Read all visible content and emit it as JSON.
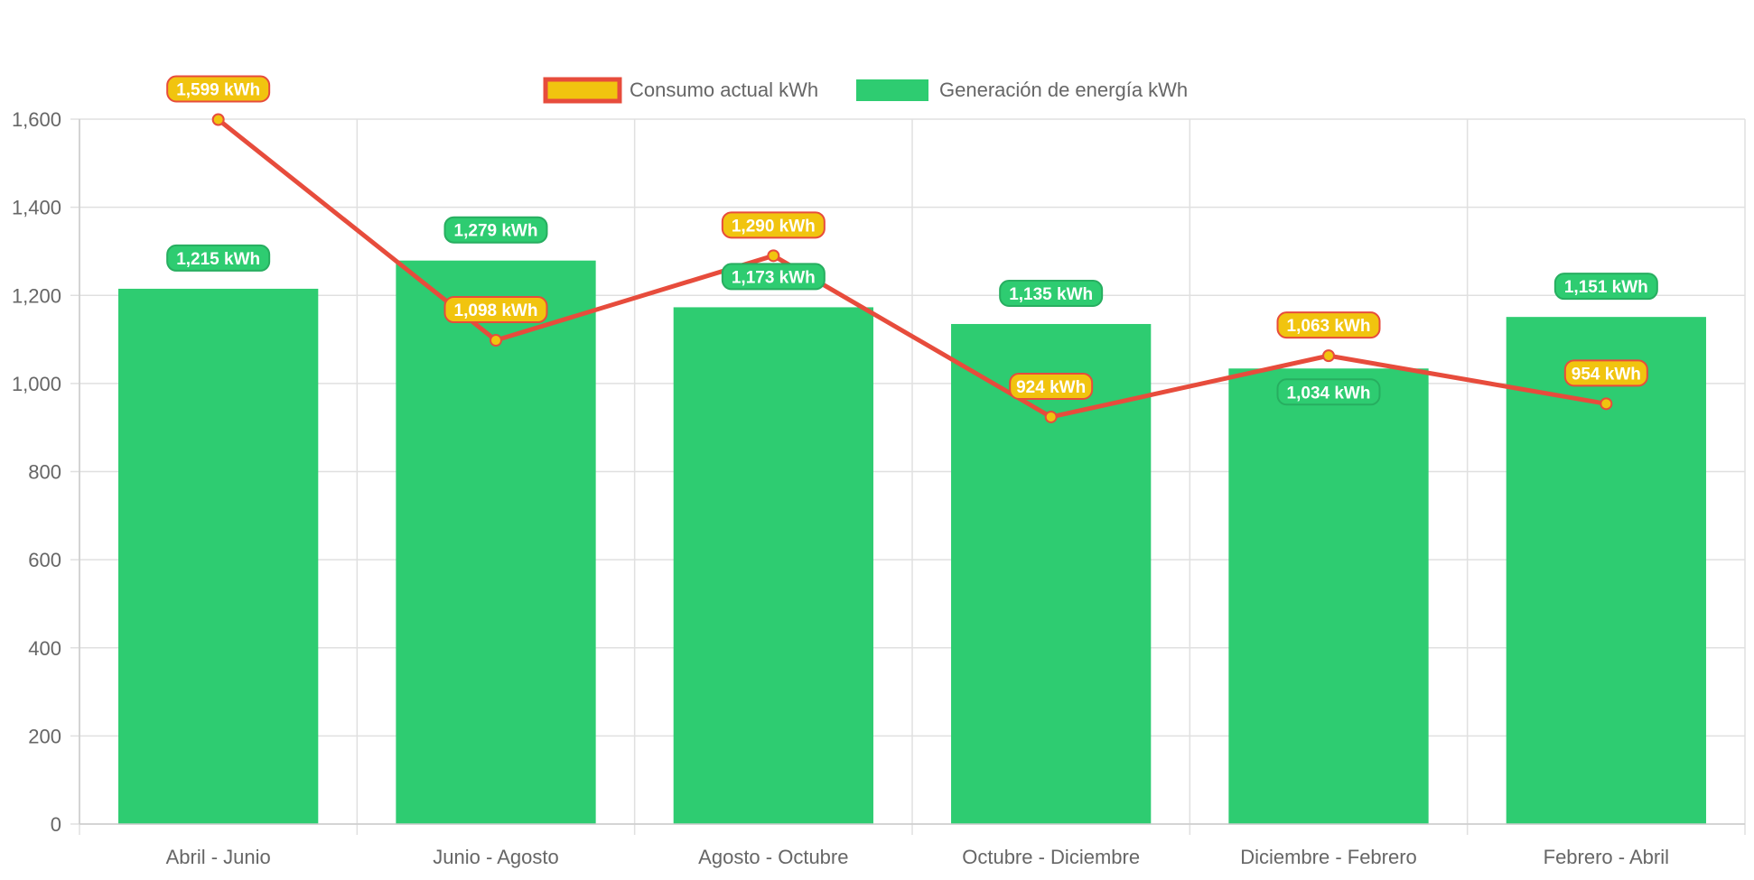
{
  "chart_data": {
    "type": "bar",
    "title": "",
    "xlabel": "",
    "ylabel": "",
    "categories": [
      "Abril - Junio",
      "Junio - Agosto",
      "Agosto - Octubre",
      "Octubre - Diciembre",
      "Diciembre - Febrero",
      "Febrero - Abril"
    ],
    "ylim": [
      0,
      1600
    ],
    "yticks": [
      0,
      200,
      400,
      600,
      800,
      1000,
      1200,
      1400,
      1600
    ],
    "ytick_labels": [
      "0",
      "200",
      "400",
      "600",
      "800",
      "1,000",
      "1,200",
      "1,400",
      "1,600"
    ],
    "grid": true,
    "legend_position": "top-center",
    "unit": "kWh",
    "series": [
      {
        "name": "Consumo actual kWh",
        "type": "line",
        "color": "#e74c3c",
        "fill": "#f1c40f",
        "values": [
          1599,
          1098,
          1290,
          924,
          1063,
          954
        ],
        "labels": [
          "1,599 kWh",
          "1,098 kWh",
          "1,290 kWh",
          "924 kWh",
          "1,063 kWh",
          "954 kWh"
        ]
      },
      {
        "name": "Generación de energía kWh",
        "type": "bar",
        "color": "#2ecc71",
        "values": [
          1215,
          1279,
          1173,
          1135,
          1034,
          1151
        ],
        "labels": [
          "1,215 kWh",
          "1,279 kWh",
          "1,173 kWh",
          "1,135 kWh",
          "1,034 kWh",
          "1,151 kWh"
        ]
      }
    ]
  }
}
